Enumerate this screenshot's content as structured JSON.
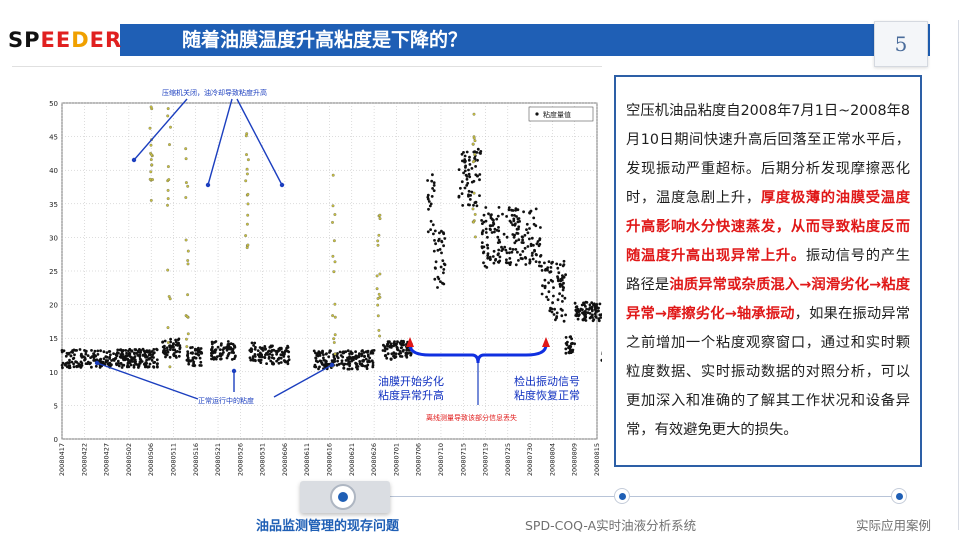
{
  "header": {
    "logo_parts": [
      {
        "text": "SP",
        "color": "#111111"
      },
      {
        "text": "EE",
        "color": "#e02020"
      },
      {
        "text": "D",
        "color": "#f0a000"
      },
      {
        "text": "ER",
        "color": "#e02020"
      }
    ],
    "title": "随着油膜温度升高粘度是下降的？",
    "page_number": "5"
  },
  "chart_data": {
    "type": "scatter",
    "ylim": [
      0,
      50
    ],
    "yticks": [
      "0",
      "5",
      "10",
      "15",
      "20",
      "25",
      "30",
      "35",
      "40",
      "45",
      "50"
    ],
    "xticks": [
      "20080417",
      "20080422",
      "20080427",
      "20080502",
      "20080506",
      "20080511",
      "20080516",
      "20080521",
      "20080526",
      "20080531",
      "20080606",
      "20080611",
      "20080616",
      "20080621",
      "20080626",
      "20080701",
      "20080706",
      "20080710",
      "20080715",
      "20080719",
      "20080725",
      "20080730",
      "20080804",
      "20080809",
      "20080815"
    ],
    "legend": "粘度量值",
    "legend_position": "top-right",
    "series": [
      {
        "name": "粘度量值",
        "segments": [
          {
            "x_from": 0,
            "x_to": 4.3,
            "y": 12.0
          },
          {
            "x_from": 4.5,
            "x_to": 5.3,
            "y": 13.5
          },
          {
            "x_from": 5.6,
            "x_to": 6.3,
            "y": 12.3
          },
          {
            "x_from": 6.7,
            "x_to": 7.8,
            "y": 13.2
          },
          {
            "x_from": 8.4,
            "x_to": 8.7,
            "y": 13.0
          },
          {
            "x_from": 8.8,
            "x_to": 10.2,
            "y": 12.5
          },
          {
            "x_from": 11.3,
            "x_to": 14.0,
            "y": 11.8
          },
          {
            "x_from": 14.4,
            "x_to": 15.7,
            "y": 13.2
          },
          {
            "x_from": 16.4,
            "x_to": 16.7,
            "y": 35.0
          },
          {
            "x_from": 16.7,
            "x_to": 17.2,
            "y": 27.0
          },
          {
            "x_from": 17.8,
            "x_to": 18.8,
            "y": 39.0
          },
          {
            "x_from": 18.8,
            "x_to": 21.5,
            "y": 30.0
          },
          {
            "x_from": 21.5,
            "x_to": 22.6,
            "y": 22.0
          },
          {
            "x_from": 22.6,
            "x_to": 23.0,
            "y": 14.0
          },
          {
            "x_from": 23.0,
            "x_to": 24.2,
            "y": 19.0
          },
          {
            "x_from": 24.2,
            "x_to": 24.9,
            "y": 13.0
          }
        ]
      }
    ]
  },
  "chart_annotations": {
    "top_note": "压缩机关闭，油冷却导致粘度升高",
    "normal_note": "正常运行中的粘度",
    "film_note_1": "油膜开始劣化",
    "film_note_2": "粘度异常升高",
    "vib_note_1": "检出振动信号",
    "vib_note_2": "粘度恢复正常",
    "offline_note": "离线测量导致该部分信息丢失"
  },
  "panel": {
    "segments": [
      {
        "text": "空压机油品粘度自2008年7月1日~2008年8月10日期间快速升高后回落至正常水平后，发现振动严重超标。后期分析发现摩擦恶化时，温度急剧上升，",
        "red": false
      },
      {
        "text": "厚度极薄的油膜受温度升高影响水分快速蒸发，从而导致粘度反而随温度升高出现异常上升。",
        "red": true
      },
      {
        "text": "振动信号的产生路径是",
        "red": false
      },
      {
        "text": "油质异常或杂质混入→润滑劣化→粘度异常→摩擦劣化→轴承振动",
        "red": true
      },
      {
        "text": "，如果在振动异常之前增加一个粘度观察窗口，通过和实时颗粒度数据、实时振动数据的对照分析，可以更加深入和准确的了解其工作状况和设备异常，有效避免更大的损失。",
        "red": false
      }
    ]
  },
  "nav": {
    "items": [
      {
        "label": "油品监测管理的现存问题",
        "active": true
      },
      {
        "label": "SPD-COQ-A实时油液分析系统",
        "active": false
      },
      {
        "label": "实际应用案例",
        "active": false
      }
    ]
  },
  "colors": {
    "brand_blue": "#1f5fb5",
    "highlight_red": "#e01818",
    "marker_dark": "#111111",
    "marker_yellow": "#c8c040"
  }
}
